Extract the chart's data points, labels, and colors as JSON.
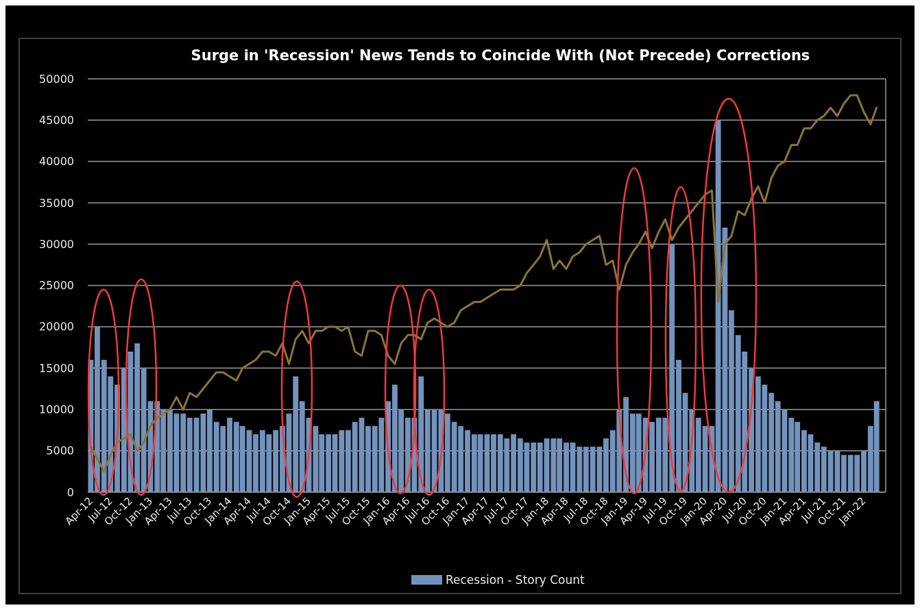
{
  "chart_data": {
    "type": "bar",
    "title": "Surge in 'Recession' News Tends to Coincide With (Not Precede) Corrections",
    "x": [
      "2012-04",
      "2012-05",
      "2012-06",
      "2012-07",
      "2012-08",
      "2012-09",
      "2012-10",
      "2012-11",
      "2012-12",
      "2013-01",
      "2013-02",
      "2013-03",
      "2013-04",
      "2013-05",
      "2013-06",
      "2013-07",
      "2013-08",
      "2013-09",
      "2013-10",
      "2013-11",
      "2013-12",
      "2014-01",
      "2014-02",
      "2014-03",
      "2014-04",
      "2014-05",
      "2014-06",
      "2014-07",
      "2014-08",
      "2014-09",
      "2014-10",
      "2014-11",
      "2014-12",
      "2015-01",
      "2015-02",
      "2015-03",
      "2015-04",
      "2015-05",
      "2015-06",
      "2015-07",
      "2015-08",
      "2015-09",
      "2015-10",
      "2015-11",
      "2015-12",
      "2016-01",
      "2016-02",
      "2016-03",
      "2016-04",
      "2016-05",
      "2016-06",
      "2016-07",
      "2016-08",
      "2016-09",
      "2016-10",
      "2016-11",
      "2016-12",
      "2017-01",
      "2017-02",
      "2017-03",
      "2017-04",
      "2017-05",
      "2017-06",
      "2017-07",
      "2017-08",
      "2017-09",
      "2017-10",
      "2017-11",
      "2017-12",
      "2018-01",
      "2018-02",
      "2018-03",
      "2018-04",
      "2018-05",
      "2018-06",
      "2018-07",
      "2018-08",
      "2018-09",
      "2018-10",
      "2018-11",
      "2018-12",
      "2019-01",
      "2019-02",
      "2019-03",
      "2019-04",
      "2019-05",
      "2019-06",
      "2019-07",
      "2019-08",
      "2019-09",
      "2019-10",
      "2019-11",
      "2019-12",
      "2020-01",
      "2020-02",
      "2020-03",
      "2020-04",
      "2020-05",
      "2020-06",
      "2020-07",
      "2020-08",
      "2020-09",
      "2020-10",
      "2020-11",
      "2020-12",
      "2021-01",
      "2021-02",
      "2021-03",
      "2021-04",
      "2021-05",
      "2021-06",
      "2021-07",
      "2021-08",
      "2021-09",
      "2021-10",
      "2021-11",
      "2021-12",
      "2022-01",
      "2022-02",
      "2022-03"
    ],
    "series": [
      {
        "name": "Recession - Story Count",
        "color": "#7393bd",
        "values": [
          16000,
          20000,
          16000,
          14000,
          13000,
          15000,
          17000,
          18000,
          15000,
          11000,
          11000,
          10000,
          10000,
          9500,
          9500,
          9000,
          9000,
          9500,
          10000,
          8500,
          8000,
          9000,
          8500,
          8000,
          7500,
          7000,
          7500,
          7000,
          7500,
          8000,
          9500,
          14000,
          11000,
          9000,
          8000,
          7000,
          7000,
          7000,
          7500,
          7500,
          8500,
          9000,
          8000,
          8000,
          9000,
          11000,
          13000,
          10000,
          9000,
          9000,
          14000,
          10000,
          10000,
          10000,
          9500,
          8500,
          8000,
          7500,
          7000,
          7000,
          7000,
          7000,
          7000,
          6500,
          7000,
          6500,
          6000,
          6000,
          6000,
          6500,
          6500,
          6500,
          6000,
          6000,
          5500,
          5500,
          5500,
          5500,
          6500,
          7500,
          10000,
          11500,
          9500,
          9500,
          9000,
          8500,
          9000,
          9000,
          30000,
          16000,
          12000,
          10000,
          9000,
          8000,
          8000,
          45000,
          32000,
          22000,
          19000,
          17000,
          15000,
          14000,
          13000,
          12000,
          11000,
          10000,
          9000,
          8500,
          7500,
          7000,
          6000,
          5500,
          5000,
          5000,
          4500,
          4500,
          4500,
          5000,
          8000,
          11000
        ]
      },
      {
        "type": "line",
        "color": "#8c7434",
        "values": [
          5500,
          4000,
          2500,
          4500,
          6000,
          6500,
          7000,
          5000,
          6000,
          8000,
          9000,
          9500,
          10000,
          11500,
          10000,
          12000,
          11500,
          12500,
          13500,
          14500,
          14500,
          14000,
          13500,
          15000,
          15500,
          16000,
          17000,
          17000,
          16500,
          18000,
          15500,
          18500,
          19500,
          18000,
          19500,
          19500,
          20000,
          20000,
          19500,
          20000,
          17000,
          16500,
          19500,
          19500,
          19000,
          16500,
          15500,
          18000,
          19000,
          19000,
          18500,
          20500,
          21000,
          20500,
          20000,
          20500,
          22000,
          22500,
          23000,
          23000,
          23500,
          24000,
          24500,
          24500,
          24500,
          25000,
          26500,
          27500,
          28500,
          30500,
          27000,
          28000,
          27000,
          28500,
          29000,
          30000,
          30500,
          31000,
          27500,
          28000,
          24500,
          27500,
          29000,
          30000,
          31500,
          29500,
          31500,
          33000,
          30500,
          32000,
          33000,
          34000,
          35000,
          36000,
          36500,
          23000,
          30000,
          31000,
          34000,
          33500,
          35500,
          37000,
          35000,
          38000,
          39500,
          40000,
          42000,
          42000,
          44000,
          44000,
          45000,
          45500,
          46500,
          45500,
          47000,
          48000,
          48000,
          46000,
          44500,
          46500
        ]
      }
    ],
    "xlim": [
      "2012-03-18",
      "2022-04-12"
    ],
    "xticks": [
      {
        "value": "2012-04",
        "label": "Apr-12"
      },
      {
        "value": "2012-07",
        "label": "Jul-12"
      },
      {
        "value": "2012-10",
        "label": "Oct-12"
      },
      {
        "value": "2013-01",
        "label": "Jan-13"
      },
      {
        "value": "2013-04",
        "label": "Apr-13"
      },
      {
        "value": "2013-07",
        "label": "Jul-13"
      },
      {
        "value": "2013-10",
        "label": "Oct-13"
      },
      {
        "value": "2014-01",
        "label": "Jan-14"
      },
      {
        "value": "2014-04",
        "label": "Apr-14"
      },
      {
        "value": "2014-07",
        "label": "Jul-14"
      },
      {
        "value": "2014-10",
        "label": "Oct-14"
      },
      {
        "value": "2015-01",
        "label": "Jan-15"
      },
      {
        "value": "2015-04",
        "label": "Apr-15"
      },
      {
        "value": "2015-07",
        "label": "Jul-15"
      },
      {
        "value": "2015-10",
        "label": "Oct-15"
      },
      {
        "value": "2016-01",
        "label": "Jan-16"
      },
      {
        "value": "2016-04",
        "label": "Apr-16"
      },
      {
        "value": "2016-07",
        "label": "Jul-16"
      },
      {
        "value": "2016-10",
        "label": "Oct-16"
      },
      {
        "value": "2017-01",
        "label": "Jan-17"
      },
      {
        "value": "2017-04",
        "label": "Apr-17"
      },
      {
        "value": "2017-07",
        "label": "Jul-17"
      },
      {
        "value": "2017-10",
        "label": "Oct-17"
      },
      {
        "value": "2018-01",
        "label": "Jan-18"
      },
      {
        "value": "2018-04",
        "label": "Apr-18"
      },
      {
        "value": "2018-07",
        "label": "Jul-18"
      },
      {
        "value": "2018-10",
        "label": "Oct-18"
      },
      {
        "value": "2019-01",
        "label": "Jan-19"
      },
      {
        "value": "2019-04",
        "label": "Apr-19"
      },
      {
        "value": "2019-07",
        "label": "Jul-19"
      },
      {
        "value": "2019-10",
        "label": "Oct-19"
      },
      {
        "value": "2020-01",
        "label": "Jan-20"
      },
      {
        "value": "2020-04",
        "label": "Apr-20"
      },
      {
        "value": "2020-07",
        "label": "Jul-20"
      },
      {
        "value": "2020-10",
        "label": "Oct-20"
      },
      {
        "value": "2021-01",
        "label": "Jan-21"
      },
      {
        "value": "2021-04",
        "label": "Apr-21"
      },
      {
        "value": "2021-07",
        "label": "Jul-21"
      },
      {
        "value": "2021-10",
        "label": "Oct-21"
      },
      {
        "value": "2022-01",
        "label": "Jan-22"
      }
    ],
    "ylim": [
      0,
      50000
    ],
    "yticks": [
      0,
      5000,
      10000,
      15000,
      20000,
      25000,
      30000,
      35000,
      40000,
      45000,
      50000
    ],
    "grid": "y",
    "legend": "bottom",
    "line_style": "solid",
    "marker": "none"
  }
}
